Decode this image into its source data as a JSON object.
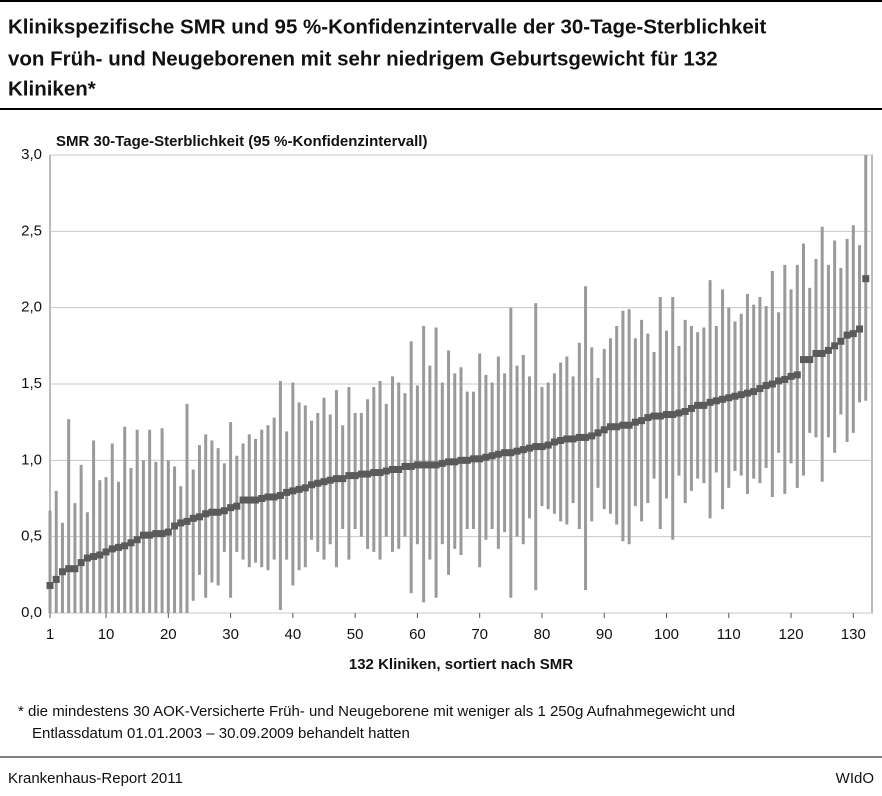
{
  "chart_data": {
    "type": "errorbar",
    "title": [
      "Klinikspezifische SMR und 95 %-Konfidenzintervalle der 30-Tage-Sterblichkeit",
      "von Früh- und Neugeborenen mit sehr niedrigem Geburtsgewicht für 132",
      "Kliniken*"
    ],
    "y_label": "SMR 30-Tage-Sterblichkeit (95 %-Konfidenzintervall)",
    "x_label": "132 Kliniken, sortiert nach SMR",
    "footnote": [
      "* die mindestens 30 AOK-Versicherte Früh- und Neugeborene mit weniger als 1 250g Aufnahmegewicht und",
      "Entlassdatum 01.01.2003 – 30.09.2009 behandelt hatten"
    ],
    "source": "Krankenhaus-Report 2011",
    "publisher": "WIdO",
    "x": [
      1,
      2,
      3,
      4,
      5,
      6,
      7,
      8,
      9,
      10,
      11,
      12,
      13,
      14,
      15,
      16,
      17,
      18,
      19,
      20,
      21,
      22,
      23,
      24,
      25,
      26,
      27,
      28,
      29,
      30,
      31,
      32,
      33,
      34,
      35,
      36,
      37,
      38,
      39,
      40,
      41,
      42,
      43,
      44,
      45,
      46,
      47,
      48,
      49,
      50,
      51,
      52,
      53,
      54,
      55,
      56,
      57,
      58,
      59,
      60,
      61,
      62,
      63,
      64,
      65,
      66,
      67,
      68,
      69,
      70,
      71,
      72,
      73,
      74,
      75,
      76,
      77,
      78,
      79,
      80,
      81,
      82,
      83,
      84,
      85,
      86,
      87,
      88,
      89,
      90,
      91,
      92,
      93,
      94,
      95,
      96,
      97,
      98,
      99,
      100,
      101,
      102,
      103,
      104,
      105,
      106,
      107,
      108,
      109,
      110,
      111,
      112,
      113,
      114,
      115,
      116,
      117,
      118,
      119,
      120,
      121,
      122,
      123,
      124,
      125,
      126,
      127,
      128,
      129,
      130,
      131,
      132
    ],
    "values": [
      0.18,
      0.22,
      0.27,
      0.29,
      0.29,
      0.33,
      0.36,
      0.37,
      0.38,
      0.4,
      0.42,
      0.43,
      0.44,
      0.46,
      0.48,
      0.51,
      0.51,
      0.52,
      0.52,
      0.53,
      0.57,
      0.59,
      0.6,
      0.62,
      0.63,
      0.65,
      0.66,
      0.66,
      0.67,
      0.69,
      0.7,
      0.74,
      0.74,
      0.74,
      0.75,
      0.76,
      0.76,
      0.77,
      0.79,
      0.8,
      0.81,
      0.82,
      0.84,
      0.85,
      0.86,
      0.87,
      0.88,
      0.88,
      0.9,
      0.9,
      0.91,
      0.91,
      0.92,
      0.92,
      0.93,
      0.94,
      0.94,
      0.96,
      0.96,
      0.97,
      0.97,
      0.97,
      0.97,
      0.98,
      0.99,
      0.99,
      1.0,
      1.0,
      1.01,
      1.01,
      1.02,
      1.03,
      1.04,
      1.05,
      1.05,
      1.06,
      1.07,
      1.08,
      1.09,
      1.09,
      1.1,
      1.12,
      1.13,
      1.14,
      1.14,
      1.15,
      1.15,
      1.16,
      1.18,
      1.2,
      1.22,
      1.22,
      1.23,
      1.23,
      1.25,
      1.26,
      1.28,
      1.29,
      1.29,
      1.3,
      1.3,
      1.31,
      1.32,
      1.34,
      1.36,
      1.36,
      1.38,
      1.39,
      1.4,
      1.41,
      1.42,
      1.43,
      1.44,
      1.45,
      1.47,
      1.49,
      1.5,
      1.52,
      1.53,
      1.55,
      1.56,
      1.66,
      1.66,
      1.7,
      1.7,
      1.72,
      1.75,
      1.78,
      1.82,
      1.83,
      1.86,
      2.19
    ],
    "lower": [
      0,
      0,
      0,
      0,
      0,
      0,
      0,
      0,
      0,
      0,
      0,
      0,
      0,
      0,
      0,
      0,
      0,
      0,
      0,
      0,
      0,
      0,
      0,
      0.08,
      0.25,
      0.1,
      0.2,
      0.18,
      0.4,
      0.1,
      0.4,
      0.35,
      0.3,
      0.33,
      0.3,
      0.28,
      0.35,
      0.02,
      0.35,
      0.18,
      0.28,
      0.3,
      0.48,
      0.4,
      0.35,
      0.45,
      0.3,
      0.55,
      0.35,
      0.55,
      0.5,
      0.42,
      0.4,
      0.35,
      0.5,
      0.4,
      0.42,
      0.5,
      0.13,
      0.45,
      0.07,
      0.35,
      0.1,
      0.45,
      0.25,
      0.42,
      0.38,
      0.55,
      0.55,
      0.3,
      0.48,
      0.55,
      0.42,
      0.53,
      0.1,
      0.5,
      0.45,
      0.62,
      0.15,
      0.7,
      0.68,
      0.65,
      0.6,
      0.58,
      0.72,
      0.55,
      0.15,
      0.6,
      0.82,
      0.68,
      0.65,
      0.58,
      0.47,
      0.45,
      0.7,
      0.6,
      0.72,
      0.88,
      0.55,
      0.75,
      0.48,
      0.9,
      0.72,
      0.8,
      0.88,
      0.85,
      0.62,
      0.92,
      0.68,
      0.82,
      0.93,
      0.9,
      0.78,
      0.88,
      0.85,
      0.95,
      0.76,
      1.05,
      0.78,
      0.98,
      0.82,
      0.9,
      1.18,
      1.15,
      0.86,
      1.15,
      1.05,
      1.3,
      1.12,
      1.18,
      1.38,
      1.39
    ],
    "upper": [
      0.67,
      0.8,
      0.59,
      1.27,
      0.72,
      0.97,
      0.66,
      1.13,
      0.87,
      0.89,
      1.11,
      0.86,
      1.22,
      0.95,
      1.2,
      1.0,
      1.2,
      0.99,
      1.21,
      1.0,
      0.96,
      0.83,
      1.37,
      0.94,
      1.1,
      1.17,
      1.13,
      1.08,
      0.98,
      1.25,
      1.03,
      1.11,
      1.17,
      1.14,
      1.2,
      1.23,
      1.28,
      1.52,
      1.19,
      1.51,
      1.38,
      1.36,
      1.26,
      1.31,
      1.41,
      1.3,
      1.46,
      1.23,
      1.48,
      1.31,
      1.31,
      1.4,
      1.48,
      1.52,
      1.37,
      1.55,
      1.51,
      1.44,
      1.78,
      1.49,
      1.88,
      1.62,
      1.87,
      1.51,
      1.72,
      1.57,
      1.61,
      1.45,
      1.45,
      1.7,
      1.56,
      1.51,
      1.68,
      1.57,
      2.0,
      1.62,
      1.69,
      1.55,
      2.03,
      1.48,
      1.51,
      1.57,
      1.64,
      1.68,
      1.55,
      1.77,
      2.14,
      1.74,
      1.54,
      1.73,
      1.8,
      1.88,
      1.98,
      1.99,
      1.8,
      1.92,
      1.83,
      1.71,
      2.07,
      1.85,
      2.07,
      1.75,
      1.92,
      1.88,
      1.84,
      1.87,
      2.18,
      1.88,
      2.12,
      2.0,
      1.91,
      1.96,
      2.09,
      2.02,
      2.07,
      2.01,
      2.24,
      1.97,
      2.28,
      2.12,
      2.28,
      2.42,
      2.13,
      2.32,
      2.53,
      2.28,
      2.44,
      2.26,
      2.45,
      2.54,
      2.41,
      3.0
    ],
    "color": "#5a5a5a",
    "bar_color": "#9a9a9a",
    "xlim": [
      1,
      133
    ],
    "xticks": [
      1,
      10,
      20,
      30,
      40,
      50,
      60,
      70,
      80,
      90,
      100,
      110,
      120,
      130
    ],
    "ylim": [
      0,
      3
    ],
    "yticks": [
      {
        "value": 0,
        "label": "0,0"
      },
      {
        "value": 0.5,
        "label": "0,5"
      },
      {
        "value": 1,
        "label": "1,0"
      },
      {
        "value": 1.5,
        "label": "1,5"
      },
      {
        "value": 2,
        "label": "2,0"
      },
      {
        "value": 2.5,
        "label": "2,5"
      },
      {
        "value": 3,
        "label": "3,0"
      }
    ],
    "grid": true
  }
}
